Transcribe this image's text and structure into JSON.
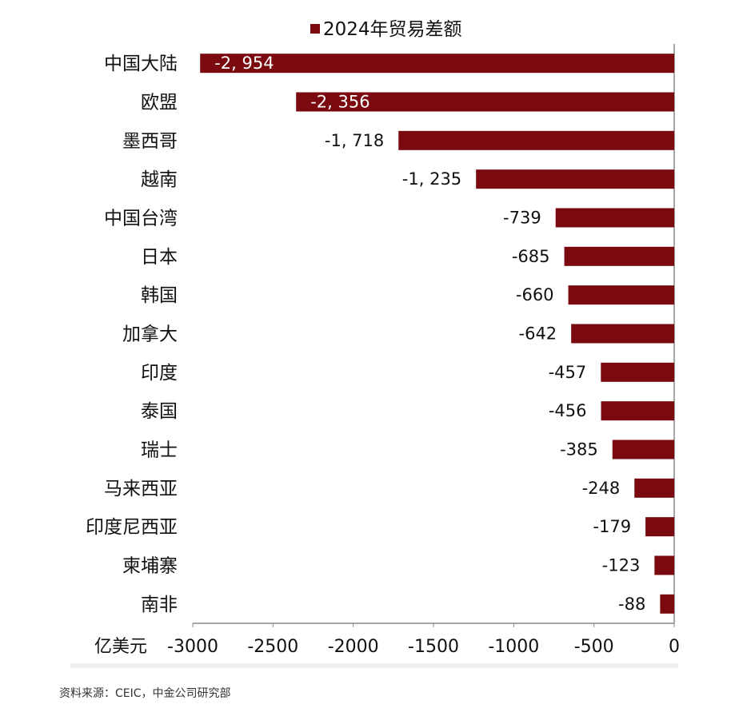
{
  "chart_data": {
    "type": "bar",
    "orientation": "horizontal",
    "categories": [
      "中国大陆",
      "欧盟",
      "墨西哥",
      "越南",
      "中国台湾",
      "日本",
      "韩国",
      "加拿大",
      "印度",
      "泰国",
      "瑞士",
      "马来西亚",
      "印度尼西亚",
      "柬埔寨",
      "南非"
    ],
    "series": [
      {
        "name": "2024年贸易差额",
        "values": [
          -2954,
          -2356,
          -1718,
          -1235,
          -739,
          -685,
          -660,
          -642,
          -457,
          -456,
          -385,
          -248,
          -179,
          -123,
          -88
        ],
        "labels": [
          "-2, 954",
          "-2, 356",
          "-1, 718",
          "-1, 235",
          "-739",
          "-685",
          "-660",
          "-642",
          "-457",
          "-456",
          "-385",
          "-248",
          "-179",
          "-123",
          "-88"
        ],
        "color": "#7a0a0f"
      }
    ],
    "xlabel": "亿美元",
    "xlim": [
      -3000,
      0
    ],
    "xticks": [
      -3000,
      -2500,
      -2000,
      -1500,
      -1000,
      -500,
      0
    ],
    "xtick_labels": [
      "-3000",
      "-2500",
      "-2000",
      "-1500",
      "-1000",
      "-500",
      "0"
    ],
    "legend_position": "top",
    "grid": false
  },
  "source_note": "资料来源：CEIC，中金公司研究部"
}
